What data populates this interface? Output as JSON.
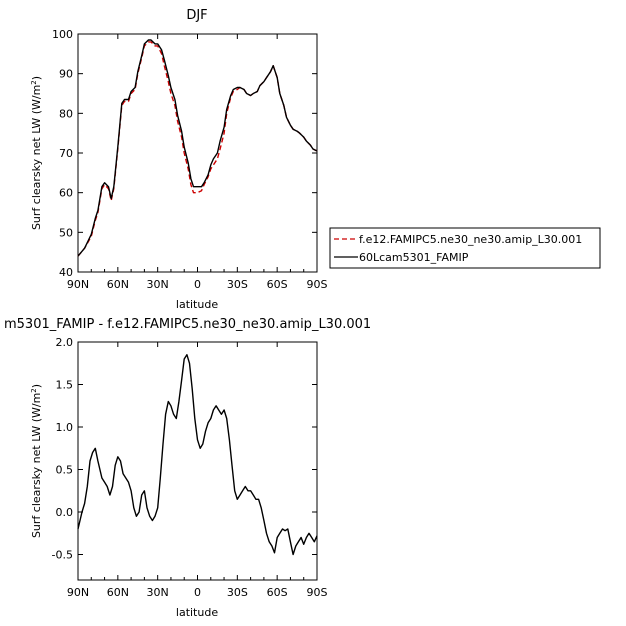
{
  "chart_data": [
    {
      "type": "line",
      "title": "DJF",
      "xlabel": "latitude",
      "ylabel": "Surf clearsky net LW (W/m",
      "ylabel_sup": "2",
      "ylabel_end": ")",
      "x_ticks": [
        -90,
        -60,
        -30,
        0,
        30,
        60,
        90
      ],
      "x_tick_labels": [
        "90N",
        "60N",
        "30N",
        "0",
        "30S",
        "60S",
        "90S"
      ],
      "xlim": [
        -90,
        90
      ],
      "y_ticks": [
        40,
        50,
        60,
        70,
        80,
        90,
        100
      ],
      "y_tick_labels": [
        "40",
        "50",
        "60",
        "70",
        "80",
        "90",
        "100"
      ],
      "ylim": [
        40,
        100
      ],
      "grid": false,
      "legend_position": "right",
      "series": [
        {
          "name": "f.e12.FAMIPC5.ne30_ne30.amip_L30.001",
          "color": "#cc0000",
          "dash": "dashed",
          "x": [
            -90,
            -85,
            -80,
            -77,
            -75,
            -72,
            -70,
            -67,
            -65,
            -63,
            -60,
            -57,
            -55,
            -52,
            -50,
            -47,
            -45,
            -42,
            -40,
            -37,
            -35,
            -32,
            -30,
            -27,
            -25,
            -22,
            -20,
            -17,
            -15,
            -12,
            -10,
            -7,
            -5,
            -3,
            0,
            3,
            5,
            8,
            10,
            12,
            15,
            17,
            20,
            22,
            25,
            27,
            30,
            32,
            35,
            37,
            40,
            42,
            45,
            47,
            50,
            52,
            55,
            57,
            60,
            62,
            65,
            67,
            70,
            72,
            75,
            77,
            80,
            82,
            85,
            87,
            90
          ],
          "y": [
            44,
            46,
            49,
            53,
            55,
            61,
            62,
            61,
            58,
            61,
            71,
            82,
            83,
            83,
            85,
            86,
            90,
            94,
            97,
            98,
            98,
            97,
            97,
            95,
            92,
            88,
            85,
            82,
            78,
            74,
            70,
            66,
            62,
            60,
            60,
            60.5,
            62,
            64,
            66,
            67,
            68.5,
            71,
            75,
            80,
            84,
            85.5,
            86,
            86.5,
            86,
            85,
            84.5,
            85,
            85.5,
            87,
            88,
            89,
            90.5,
            92,
            89,
            85,
            82,
            79,
            77,
            76,
            75.5,
            75,
            74,
            73,
            72,
            71,
            70.5
          ]
        },
        {
          "name": "60Lcam5301_FAMIP",
          "color": "#000000",
          "dash": "solid",
          "x": [
            -90,
            -85,
            -80,
            -77,
            -75,
            -72,
            -70,
            -67,
            -65,
            -63,
            -60,
            -57,
            -55,
            -52,
            -50,
            -47,
            -45,
            -42,
            -40,
            -37,
            -35,
            -32,
            -30,
            -27,
            -25,
            -22,
            -20,
            -17,
            -15,
            -12,
            -10,
            -7,
            -5,
            -3,
            0,
            3,
            5,
            8,
            10,
            12,
            15,
            17,
            20,
            22,
            25,
            27,
            30,
            32,
            35,
            37,
            40,
            42,
            45,
            47,
            50,
            52,
            55,
            57,
            60,
            62,
            65,
            67,
            70,
            72,
            75,
            77,
            80,
            82,
            85,
            87,
            90
          ],
          "y": [
            44,
            46,
            49.5,
            53.5,
            55.5,
            61.5,
            62.5,
            61.5,
            58.5,
            61.5,
            71.5,
            82.5,
            83.5,
            83.5,
            85.5,
            86.5,
            90.5,
            94.5,
            97.5,
            98.5,
            98.5,
            97.5,
            97.5,
            96,
            93.5,
            89.5,
            86.5,
            83.5,
            79.5,
            75.5,
            71.5,
            67.5,
            63.5,
            61.5,
            61.5,
            61.5,
            62.5,
            64.5,
            67,
            68.5,
            70,
            73,
            76.5,
            81,
            84.5,
            86,
            86.5,
            86.5,
            86,
            85,
            84.5,
            85,
            85.5,
            87,
            88,
            89,
            90.5,
            92,
            89,
            85,
            82,
            79,
            77,
            76,
            75.5,
            75,
            74,
            73,
            72,
            71,
            70.5
          ]
        }
      ]
    },
    {
      "type": "line",
      "title": "m5301_FAMIP - f.e12.FAMIPC5.ne30_ne30.amip_L30.001",
      "xlabel": "latitude",
      "ylabel": "Surf clearsky net LW (W/m",
      "ylabel_sup": "2",
      "ylabel_end": ")",
      "x_ticks": [
        -90,
        -60,
        -30,
        0,
        30,
        60,
        90
      ],
      "x_tick_labels": [
        "90N",
        "60N",
        "30N",
        "0",
        "30S",
        "60S",
        "90S"
      ],
      "xlim": [
        -90,
        90
      ],
      "y_ticks": [
        -0.5,
        0.0,
        0.5,
        1.0,
        1.5,
        2.0
      ],
      "y_tick_labels": [
        "-0.5",
        "0.0",
        "0.5",
        "1.0",
        "1.5",
        "2.0"
      ],
      "ylim": [
        -0.8,
        2.0
      ],
      "grid": false,
      "series": [
        {
          "color": "#000000",
          "dash": "solid",
          "x": [
            -90,
            -87,
            -85,
            -83,
            -81,
            -79,
            -77,
            -75,
            -72,
            -70,
            -68,
            -66,
            -64,
            -62,
            -60,
            -58,
            -56,
            -54,
            -52,
            -50,
            -48,
            -46,
            -44,
            -42,
            -40,
            -38,
            -36,
            -34,
            -32,
            -30,
            -28,
            -26,
            -24,
            -22,
            -20,
            -18,
            -16,
            -14,
            -12,
            -10,
            -8,
            -6,
            -4,
            -2,
            0,
            2,
            4,
            6,
            8,
            10,
            12,
            14,
            16,
            18,
            20,
            22,
            24,
            26,
            28,
            30,
            32,
            34,
            36,
            38,
            40,
            42,
            44,
            46,
            48,
            50,
            52,
            54,
            56,
            58,
            60,
            62,
            64,
            66,
            68,
            70,
            72,
            74,
            76,
            78,
            80,
            82,
            84,
            86,
            88,
            90
          ],
          "y": [
            -0.2,
            0.0,
            0.1,
            0.3,
            0.6,
            0.7,
            0.75,
            0.6,
            0.4,
            0.35,
            0.3,
            0.2,
            0.3,
            0.55,
            0.65,
            0.6,
            0.45,
            0.4,
            0.35,
            0.25,
            0.05,
            -0.05,
            0.0,
            0.2,
            0.25,
            0.05,
            -0.05,
            -0.1,
            -0.05,
            0.05,
            0.4,
            0.8,
            1.15,
            1.3,
            1.25,
            1.15,
            1.1,
            1.3,
            1.55,
            1.8,
            1.85,
            1.75,
            1.45,
            1.1,
            0.85,
            0.75,
            0.8,
            0.95,
            1.05,
            1.1,
            1.2,
            1.25,
            1.2,
            1.15,
            1.2,
            1.1,
            0.85,
            0.55,
            0.25,
            0.15,
            0.2,
            0.25,
            0.3,
            0.25,
            0.25,
            0.2,
            0.15,
            0.15,
            0.05,
            -0.1,
            -0.25,
            -0.35,
            -0.4,
            -0.48,
            -0.3,
            -0.25,
            -0.2,
            -0.22,
            -0.2,
            -0.35,
            -0.5,
            -0.4,
            -0.35,
            -0.3,
            -0.38,
            -0.3,
            -0.25,
            -0.3,
            -0.35,
            -0.28
          ]
        }
      ]
    }
  ]
}
